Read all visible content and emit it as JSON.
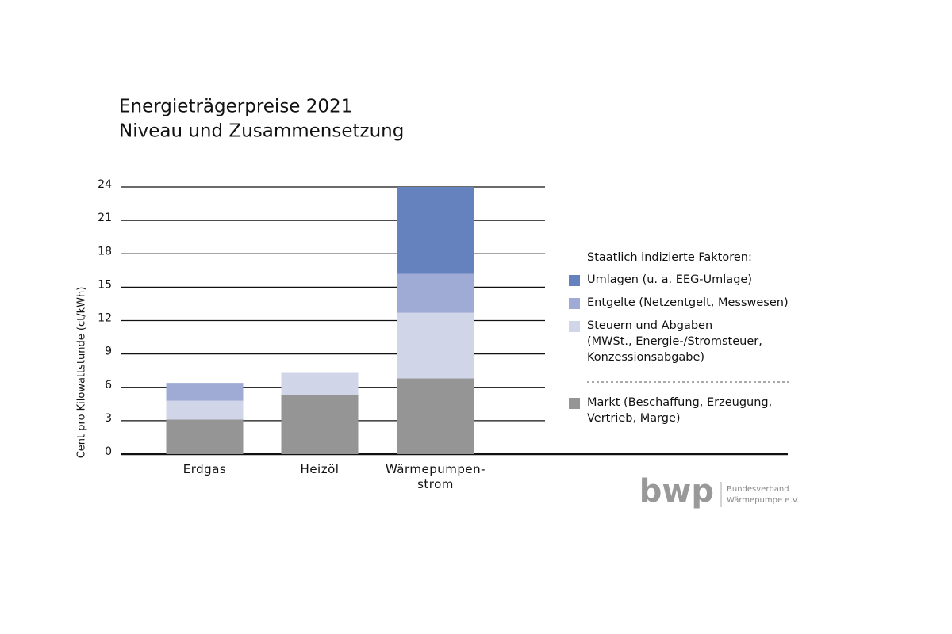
{
  "chart_data": {
    "type": "stacked_bar",
    "title": "Energieträgerpreise 2021",
    "subtitle": "Niveau und Zusammensetzung",
    "y_label": "Cent pro Kilowattstunde (ct/kWh)",
    "categories": [
      "Erdgas",
      "Heizöl",
      "Wärmepumpen-\nstrom"
    ],
    "series": [
      {
        "name": "Markt (Beschaffung, Erzeugung,\nVertrieb, Marge)",
        "color": "#959595",
        "values": [
          3.1,
          5.3,
          6.8
        ]
      },
      {
        "name": "Steuern und Abgaben\n(MWSt., Energie-/Stromsteuer,\nKonzessionsabgabe)",
        "color": "#d0d5e8",
        "values": [
          1.7,
          2.0,
          5.9
        ]
      },
      {
        "name": "Entgelte (Netzentgelt, Messwesen)",
        "color": "#9fabd4",
        "values": [
          1.6,
          0,
          3.5
        ]
      },
      {
        "name": "Umlagen (u. a. EEG-Umlage)",
        "color": "#6682be",
        "values": [
          0,
          0,
          7.8
        ]
      }
    ],
    "legend_title": "Staatlich indizierte Faktoren:",
    "ylim": [
      0,
      24
    ],
    "yticks": [
      0,
      3,
      6,
      9,
      12,
      15,
      18,
      21,
      24
    ],
    "grid": true
  },
  "logo": {
    "mark": "bwp",
    "line1": "Bundesverband",
    "line2": "Wärmepumpe e.V."
  }
}
